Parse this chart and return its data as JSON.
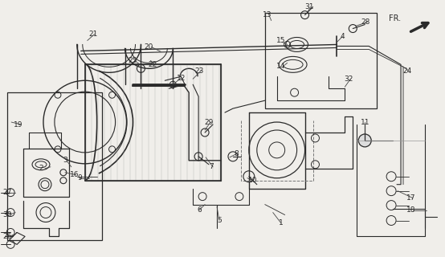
{
  "background_color": "#f0eeea",
  "line_color": "#2a2a2a",
  "fig_width": 5.54,
  "fig_height": 3.2,
  "dpi": 100
}
